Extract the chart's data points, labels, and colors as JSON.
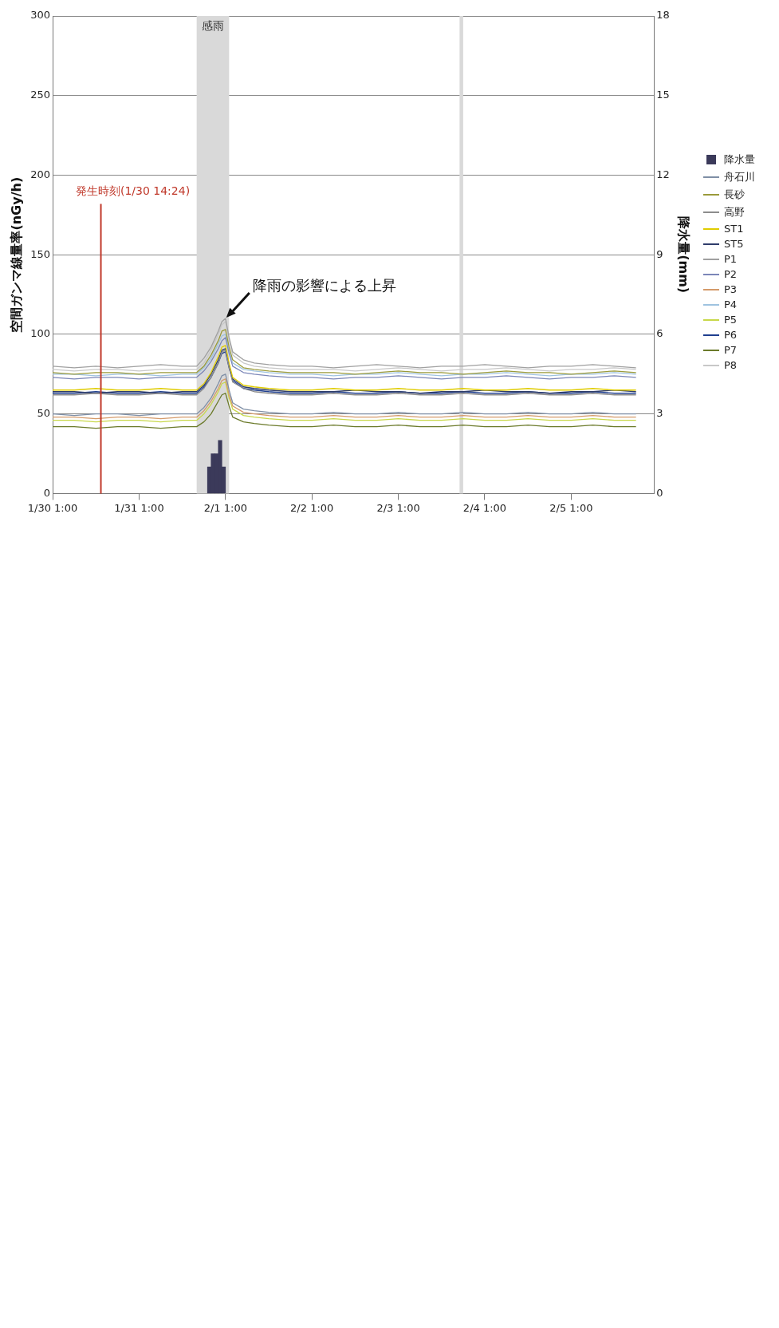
{
  "chart_data": {
    "type": "line",
    "ylabel": "空間ガンマ線量率(nGy/h)",
    "y2label": "降水量(mm)",
    "x": [
      "--01-30T01:00",
      "--01-30T07:00",
      "--01-30T13:00",
      "--01-30T19:00",
      "--01-31T01:00",
      "--01-31T07:00",
      "--01-31T13:00",
      "--01-31T17:00",
      "--01-31T19:00",
      "--01-31T21:00",
      "--01-31T23:00",
      "--02-01T00:00",
      "--02-01T01:00",
      "--02-01T02:00",
      "--02-01T03:00",
      "--02-01T06:00",
      "--02-01T09:00",
      "--02-01T13:00",
      "--02-01T19:00",
      "--02-02T01:00",
      "--02-02T07:00",
      "--02-02T13:00",
      "--02-02T19:00",
      "--02-03T01:00",
      "--02-03T07:00",
      "--02-03T13:00",
      "--02-03T19:00",
      "--02-04T01:00",
      "--02-04T07:00",
      "--02-04T13:00",
      "--02-04T19:00",
      "--02-05T01:00",
      "--02-05T07:00",
      "--02-05T13:00",
      "--02-05T19:00"
    ],
    "series": [
      {
        "name": "降水量",
        "type": "bar",
        "axis": "y2",
        "color": "#3b3a5a",
        "x": [
          "--01-31T20:30",
          "--01-31T21:30",
          "--01-31T22:30",
          "--01-31T23:30",
          "--02-01T00:30"
        ],
        "values": [
          1,
          1.5,
          1.5,
          2,
          1
        ]
      },
      {
        "name": "舟石川",
        "color": "#7f8fa6",
        "values": [
          50,
          49,
          50,
          50,
          49,
          50,
          50,
          50,
          54,
          60,
          69,
          74,
          75,
          65,
          57,
          53,
          52,
          51,
          50,
          50,
          51,
          50,
          50,
          51,
          50,
          50,
          51,
          50,
          50,
          51,
          50,
          50,
          51,
          50,
          50
        ]
      },
      {
        "name": "長砂",
        "color": "#9a9a3a",
        "values": [
          76,
          75,
          76,
          76,
          75,
          76,
          76,
          76,
          80,
          87,
          96,
          102,
          103,
          92,
          84,
          79,
          78,
          77,
          76,
          76,
          76,
          75,
          76,
          77,
          76,
          76,
          75,
          76,
          77,
          76,
          76,
          75,
          76,
          77,
          76
        ]
      },
      {
        "name": "高野",
        "color": "#8c8c8c",
        "values": [
          62,
          62,
          63,
          62,
          62,
          63,
          62,
          62,
          66,
          73,
          82,
          89,
          90,
          79,
          70,
          66,
          64,
          63,
          62,
          62,
          63,
          62,
          62,
          63,
          62,
          62,
          63,
          62,
          62,
          63,
          62,
          62,
          63,
          62,
          62
        ]
      },
      {
        "name": "ST1",
        "color": "#e0cc00",
        "values": [
          65,
          65,
          66,
          65,
          65,
          66,
          65,
          65,
          69,
          76,
          86,
          92,
          93,
          82,
          73,
          68,
          67,
          66,
          65,
          65,
          66,
          65,
          65,
          66,
          65,
          65,
          66,
          65,
          65,
          66,
          65,
          65,
          66,
          65,
          65
        ]
      },
      {
        "name": "ST5",
        "color": "#2f3d6b",
        "values": [
          64,
          64,
          63,
          64,
          64,
          63,
          64,
          64,
          68,
          75,
          84,
          90,
          91,
          80,
          72,
          67,
          66,
          65,
          64,
          64,
          64,
          65,
          64,
          64,
          63,
          64,
          64,
          65,
          64,
          64,
          63,
          64,
          64,
          65,
          64
        ]
      },
      {
        "name": "P1",
        "color": "#a0a0a0",
        "values": [
          80,
          79,
          80,
          79,
          80,
          81,
          80,
          80,
          85,
          92,
          102,
          108,
          110,
          98,
          89,
          84,
          82,
          81,
          80,
          80,
          79,
          80,
          81,
          80,
          79,
          80,
          80,
          81,
          80,
          79,
          80,
          80,
          81,
          80,
          79
        ]
      },
      {
        "name": "P2",
        "color": "#7b86b8",
        "values": [
          73,
          72,
          73,
          73,
          72,
          73,
          73,
          73,
          77,
          83,
          91,
          96,
          98,
          88,
          80,
          76,
          75,
          74,
          73,
          73,
          72,
          73,
          73,
          74,
          73,
          72,
          73,
          73,
          74,
          73,
          72,
          73,
          73,
          74,
          73
        ]
      },
      {
        "name": "P3",
        "color": "#d49a6a",
        "values": [
          48,
          48,
          47,
          48,
          48,
          47,
          48,
          48,
          52,
          58,
          66,
          71,
          72,
          62,
          55,
          51,
          50,
          49,
          48,
          48,
          49,
          48,
          48,
          49,
          48,
          48,
          49,
          48,
          48,
          49,
          48,
          48,
          49,
          48,
          48
        ]
      },
      {
        "name": "P4",
        "color": "#9fc3e0",
        "values": [
          75,
          75,
          74,
          75,
          75,
          74,
          75,
          75,
          79,
          85,
          94,
          99,
          100,
          90,
          82,
          78,
          77,
          76,
          75,
          75,
          74,
          75,
          75,
          76,
          75,
          74,
          75,
          75,
          76,
          75,
          74,
          75,
          75,
          76,
          75
        ]
      },
      {
        "name": "P5",
        "color": "#c8d84a",
        "values": [
          46,
          46,
          45,
          46,
          46,
          45,
          46,
          46,
          50,
          56,
          64,
          69,
          70,
          60,
          53,
          49,
          48,
          47,
          46,
          46,
          47,
          46,
          46,
          47,
          46,
          46,
          47,
          46,
          46,
          47,
          46,
          46,
          47,
          46,
          46
        ]
      },
      {
        "name": "P6",
        "color": "#1f3f8f",
        "values": [
          63,
          63,
          64,
          63,
          63,
          64,
          63,
          63,
          67,
          73,
          82,
          88,
          89,
          79,
          71,
          66,
          65,
          64,
          63,
          63,
          64,
          63,
          63,
          64,
          63,
          63,
          64,
          63,
          63,
          64,
          63,
          63,
          64,
          63,
          63
        ]
      },
      {
        "name": "P7",
        "color": "#6b7a2a",
        "values": [
          42,
          42,
          41,
          42,
          42,
          41,
          42,
          42,
          45,
          50,
          58,
          62,
          63,
          55,
          48,
          45,
          44,
          43,
          42,
          42,
          43,
          42,
          42,
          43,
          42,
          42,
          43,
          42,
          42,
          43,
          42,
          42,
          43,
          42,
          42
        ]
      },
      {
        "name": "P8",
        "color": "#c8c8c8",
        "values": [
          78,
          77,
          78,
          78,
          77,
          78,
          78,
          78,
          82,
          90,
          100,
          106,
          108,
          96,
          87,
          82,
          80,
          79,
          78,
          78,
          78,
          77,
          78,
          79,
          78,
          77,
          78,
          78,
          79,
          78,
          77,
          78,
          78,
          79,
          78
        ]
      }
    ],
    "xlim": [
      "--01-30T01:00",
      "--02-06T00:00"
    ],
    "xticks": [
      {
        "value": "--01-30T01:00",
        "label": "1/30 1:00"
      },
      {
        "value": "--01-31T01:00",
        "label": "1/31 1:00"
      },
      {
        "value": "--02-01T01:00",
        "label": "2/1 1:00"
      },
      {
        "value": "--02-02T01:00",
        "label": "2/2 1:00"
      },
      {
        "value": "--02-03T01:00",
        "label": "2/3 1:00"
      },
      {
        "value": "--02-04T01:00",
        "label": "2/4 1:00"
      },
      {
        "value": "--02-05T01:00",
        "label": "2/5 1:00"
      }
    ],
    "ylim": [
      0,
      300
    ],
    "yticks": [
      0,
      50,
      100,
      150,
      200,
      250,
      300
    ],
    "y2lim": [
      0,
      18
    ],
    "y2ticks": [
      0,
      3,
      6,
      9,
      12,
      15,
      18
    ],
    "bands": [
      {
        "axis": "x",
        "from": "--01-31T17:00",
        "to": "--02-01T02:00",
        "label": "感雨",
        "color": "#d9d9d9"
      },
      {
        "axis": "x",
        "from": "--02-03T18:00",
        "to": "--02-03T19:00",
        "color": "#d9d9d9"
      }
    ],
    "ref_lines": [
      {
        "axis": "x",
        "value": "--01-30T14:24",
        "label": "発生時刻(1/30 14:24)",
        "color": "#c0392b"
      }
    ],
    "annotations": [
      {
        "text": "降雨の影響による上昇",
        "x": "--02-01T01:00",
        "y": 110
      }
    ],
    "grid": "y",
    "legend": "right",
    "marker": "none",
    "line_style": "solid"
  }
}
